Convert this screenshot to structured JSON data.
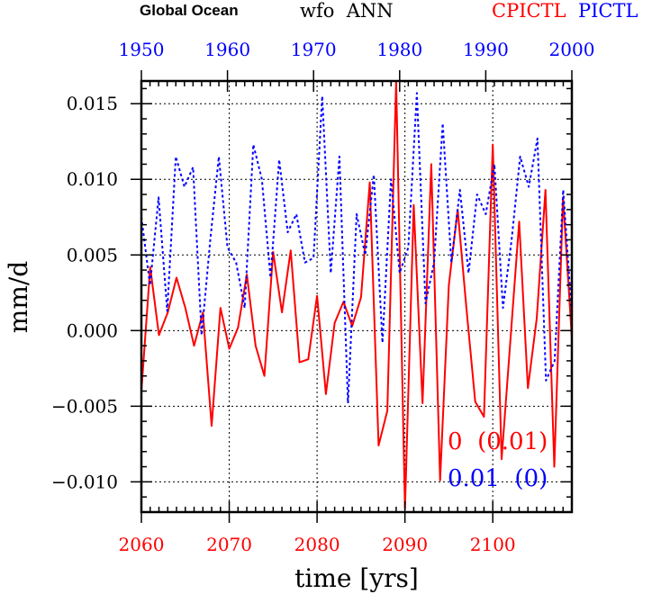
{
  "panel_label": "Global Ocean",
  "title": "wfo  ANN",
  "series_label_red": "CPICTL",
  "series_label_blue": "PICTL",
  "xlabel": "time [yrs]",
  "ylabel": "mm/d",
  "colors": {
    "red": "#ff0000",
    "blue": "#0000ff",
    "black": "#000000"
  },
  "annotations": [
    {
      "text": "0  (0.01)",
      "color": "#ff0000"
    },
    {
      "text": "0.01  (0)",
      "color": "#0000ff"
    }
  ],
  "chart_data": {
    "type": "line",
    "title": "wfo ANN",
    "xlabel": "time [yrs]",
    "ylabel": "mm/d",
    "ylim": [
      -0.012,
      0.0165
    ],
    "bottom_axis": {
      "range": [
        2060,
        2109
      ],
      "ticks": [
        2060,
        2070,
        2080,
        2090,
        2100
      ],
      "tick_labels": [
        "2060",
        "2070",
        "2080",
        "2090",
        "2100"
      ],
      "color": "#ff0000"
    },
    "top_axis": {
      "range": [
        1950,
        2000
      ],
      "ticks": [
        1950,
        1960,
        1970,
        1980,
        1990,
        2000
      ],
      "tick_labels": [
        "1950",
        "1960",
        "1970",
        "1980",
        "1990",
        "2000"
      ],
      "color": "#0000ff"
    },
    "y_ticks": [
      -0.01,
      -0.005,
      0.0,
      0.005,
      0.01,
      0.015
    ],
    "y_tick_labels": [
      "−0.010",
      "−0.005",
      "0.000",
      "0.005",
      "0.010",
      "0.015"
    ],
    "grid": true,
    "series": [
      {
        "name": "CPICTL",
        "color": "#ff0000",
        "style": "solid",
        "x_start": 2060,
        "values": [
          -0.004,
          0.0042,
          -0.0003,
          0.0012,
          0.0035,
          0.0015,
          -0.001,
          0.0012,
          -0.0063,
          0.0015,
          -0.0012,
          0.0002,
          0.0037,
          -0.001,
          -0.003,
          0.0052,
          0.0012,
          0.0053,
          -0.0021,
          -0.0019,
          0.0023,
          -0.0042,
          0.0005,
          0.0019,
          0.0003,
          0.0022,
          0.0098,
          -0.0076,
          -0.0053,
          0.0165,
          -0.0118,
          0.0083,
          -0.0048,
          0.011,
          -0.0099,
          0.003,
          0.008,
          0.0015,
          -0.0047,
          -0.0057,
          0.0123,
          -0.0085,
          -0.0007,
          0.0072,
          -0.0038,
          0.0008,
          0.0093,
          -0.009,
          0.0088,
          -0.0005
        ]
      },
      {
        "name": "PICTL",
        "color": "#0000ff",
        "style": "dotted",
        "x_start": 1950,
        "values": [
          0.0075,
          0.003,
          0.0088,
          0.0013,
          0.0115,
          0.0095,
          0.0108,
          -0.0003,
          0.006,
          0.0115,
          0.0055,
          0.0045,
          0.0015,
          0.0123,
          0.01,
          0.0035,
          0.0113,
          0.0065,
          0.0077,
          0.0045,
          0.0048,
          0.0155,
          0.0038,
          0.0115,
          -0.0048,
          0.0077,
          0.005,
          0.0103,
          -0.0008,
          0.01,
          0.0038,
          0.0055,
          0.0157,
          0.0018,
          0.0045,
          0.0137,
          0.0045,
          0.0093,
          0.0038,
          0.009,
          0.0077,
          0.011,
          0.0015,
          0.006,
          0.0115,
          0.0095,
          0.0127,
          -0.0033,
          -0.002,
          0.0093,
          0.001
        ]
      }
    ]
  }
}
